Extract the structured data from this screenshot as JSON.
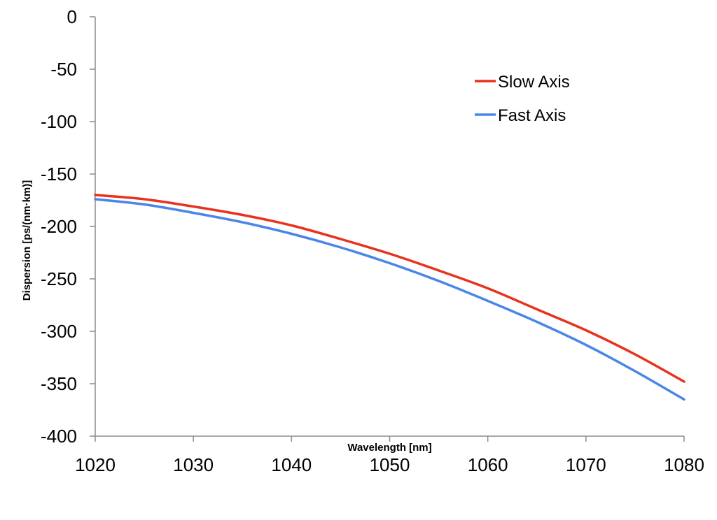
{
  "chart_data": {
    "type": "line",
    "title": "",
    "xlabel": "Wavelength [nm]",
    "ylabel": "Dispersion [ps/(nm·km)]",
    "xlim": [
      1020,
      1080
    ],
    "ylim": [
      -400,
      0
    ],
    "x_ticks": [
      "1020",
      "1030",
      "1040",
      "1050",
      "1060",
      "1070",
      "1080"
    ],
    "y_ticks": [
      "0",
      "-50",
      "-100",
      "-150",
      "-200",
      "-250",
      "-300",
      "-350",
      "-400"
    ],
    "grid": false,
    "legend_position": "top-right",
    "x": [
      1020,
      1025,
      1030,
      1035,
      1040,
      1045,
      1050,
      1055,
      1060,
      1065,
      1070,
      1075,
      1080
    ],
    "series": [
      {
        "name": "Slow Axis",
        "color": "#e8321e",
        "values": [
          -170,
          -174,
          -181,
          -189,
          -199,
          -212,
          -226,
          -242,
          -259,
          -279,
          -299,
          -322,
          -348
        ]
      },
      {
        "name": "Fast Axis",
        "color": "#4a86e8",
        "values": [
          -174,
          -179,
          -187,
          -196,
          -207,
          -220,
          -235,
          -252,
          -271,
          -291,
          -313,
          -338,
          -365
        ]
      }
    ]
  }
}
